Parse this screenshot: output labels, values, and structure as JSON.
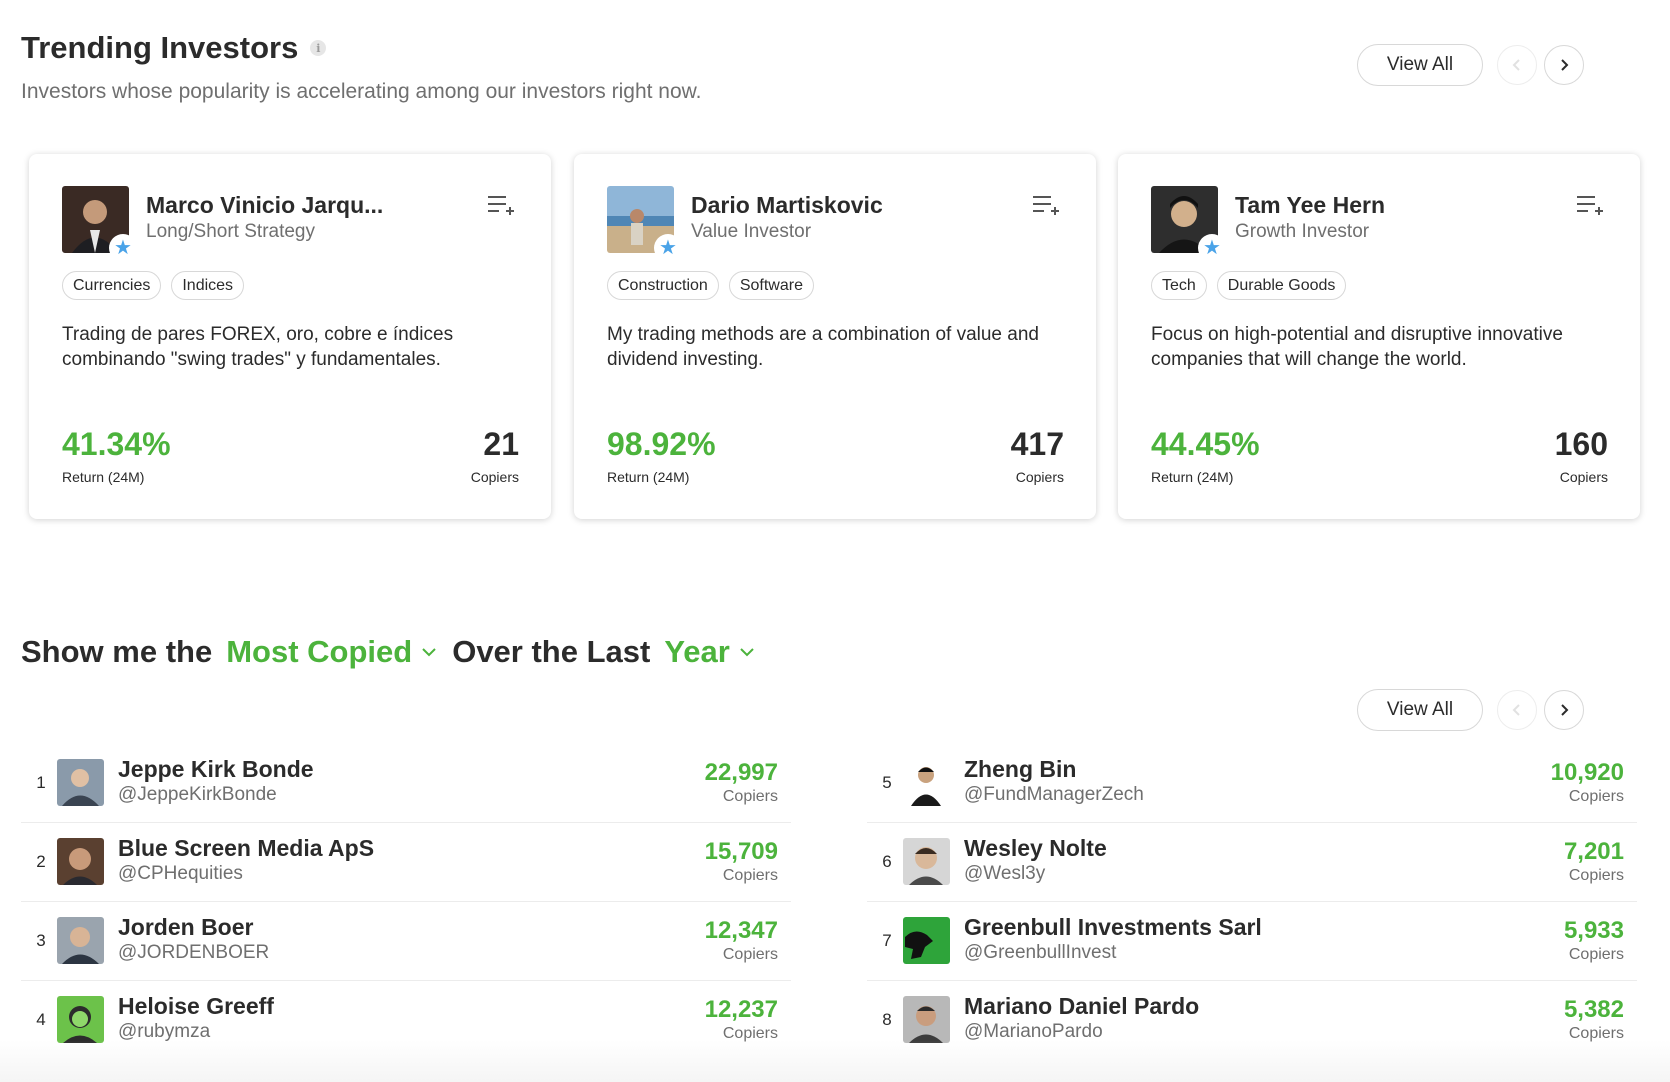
{
  "trending": {
    "title": "Trending Investors",
    "info_icon": "info-icon",
    "subtitle": "Investors whose popularity is accelerating among our investors right now.",
    "view_all": "View All",
    "cards": [
      {
        "name": "Marco Vinicio Jarqu...",
        "strategy": "Long/Short Strategy",
        "tags": [
          "Currencies",
          "Indices"
        ],
        "description": "Trading de pares FOREX, oro, cobre e índices combinando \"swing trades\" y fundamentales.",
        "return_value": "41.34%",
        "return_label": "Return (24M)",
        "copiers_value": "21",
        "copiers_label": "Copiers",
        "avatar_color": "#3a2a24"
      },
      {
        "name": "Dario Martiskovic",
        "strategy": "Value Investor",
        "tags": [
          "Construction",
          "Software"
        ],
        "description": "My trading methods are a combination of value and dividend investing.",
        "return_value": "98.92%",
        "return_label": "Return (24M)",
        "copiers_value": "417",
        "copiers_label": "Copiers",
        "avatar_color": "#8fb6d8"
      },
      {
        "name": "Tam Yee Hern",
        "strategy": "Growth Investor",
        "tags": [
          "Tech",
          "Durable Goods"
        ],
        "description": "Focus on high-potential and disruptive innovative companies that will change the world.",
        "return_value": "44.45%",
        "return_label": "Return (24M)",
        "copiers_value": "160",
        "copiers_label": "Copiers",
        "avatar_color": "#2e2e2e"
      }
    ]
  },
  "filter": {
    "prefix": "Show me the",
    "metric": "Most Copied",
    "middle": "Over the Last",
    "period": "Year",
    "view_all": "View All"
  },
  "leaderboard": {
    "left": [
      {
        "rank": "1",
        "name": "Jeppe Kirk Bonde",
        "handle": "@JeppeKirkBonde",
        "count": "22,997",
        "label": "Copiers",
        "avatar_color": "#8a9aaa"
      },
      {
        "rank": "2",
        "name": "Blue Screen Media ApS",
        "handle": "@CPHequities",
        "count": "15,709",
        "label": "Copiers",
        "avatar_color": "#5a4030"
      },
      {
        "rank": "3",
        "name": "Jorden Boer",
        "handle": "@JORDENBOER",
        "count": "12,347",
        "label": "Copiers",
        "avatar_color": "#9aa4ae"
      },
      {
        "rank": "4",
        "name": "Heloise Greeff",
        "handle": "@rubymza",
        "count": "12,237",
        "label": "Copiers",
        "avatar_color": "#6cc24a"
      }
    ],
    "right": [
      {
        "rank": "5",
        "name": "Zheng Bin",
        "handle": "@FundManagerZech",
        "count": "10,920",
        "label": "Copiers",
        "avatar_color": "#ffffff"
      },
      {
        "rank": "6",
        "name": "Wesley Nolte",
        "handle": "@Wesl3y",
        "count": "7,201",
        "label": "Copiers",
        "avatar_color": "#d6d6d6"
      },
      {
        "rank": "7",
        "name": "Greenbull Investments Sarl",
        "handle": "@GreenbullInvest",
        "count": "5,933",
        "label": "Copiers",
        "avatar_color": "#2ea43a"
      },
      {
        "rank": "8",
        "name": "Mariano Daniel Pardo",
        "handle": "@MarianoPardo",
        "count": "5,382",
        "label": "Copiers",
        "avatar_color": "#b8b8b8"
      }
    ]
  },
  "colors": {
    "accent_green": "#4cb33c",
    "star_blue": "#4aa3e8"
  }
}
